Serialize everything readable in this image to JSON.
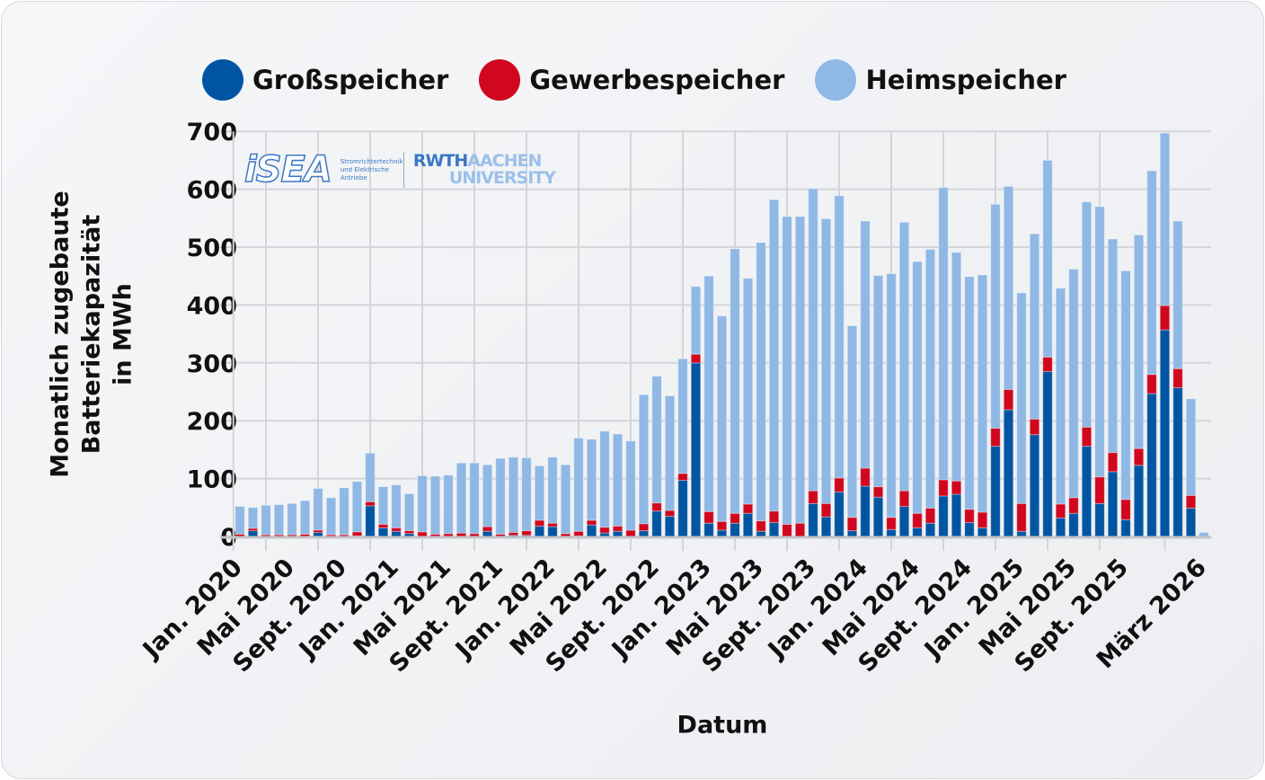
{
  "chart_data": {
    "type": "bar",
    "stacked": true,
    "xlabel": "Datum",
    "ylabel_lines": [
      "Monatlich zugebaute",
      "Batteriekapazität",
      "in MWh"
    ],
    "ylim": [
      0,
      700
    ],
    "yticks": [
      0,
      100,
      200,
      300,
      400,
      500,
      600,
      700
    ],
    "grid": true,
    "legend_position": "top",
    "x_first_month": "Jan. 2020",
    "x_last_month": "März 2026",
    "tick_labels": [
      {
        "index": 0,
        "label": "Jan. 2020"
      },
      {
        "index": 4,
        "label": "Mai 2020"
      },
      {
        "index": 8,
        "label": "Sept. 2020"
      },
      {
        "index": 12,
        "label": "Jan. 2021"
      },
      {
        "index": 16,
        "label": "Mai 2021"
      },
      {
        "index": 20,
        "label": "Sept. 2021"
      },
      {
        "index": 24,
        "label": "Jan. 2022"
      },
      {
        "index": 28,
        "label": "Mai 2022"
      },
      {
        "index": 32,
        "label": "Sept. 2022"
      },
      {
        "index": 36,
        "label": "Jan. 2023"
      },
      {
        "index": 40,
        "label": "Mai 2023"
      },
      {
        "index": 44,
        "label": "Sept. 2023"
      },
      {
        "index": 48,
        "label": "Jan. 2024"
      },
      {
        "index": 52,
        "label": "Mai 2024"
      },
      {
        "index": 56,
        "label": "Sept. 2024"
      },
      {
        "index": 60,
        "label": "Jan. 2025"
      },
      {
        "index": 64,
        "label": "Mai 2025"
      },
      {
        "index": 68,
        "label": "Sept. 2025"
      },
      {
        "index": 74,
        "label": "März 2026"
      }
    ],
    "series": [
      {
        "name": "Großspeicher",
        "color": "#0055a3",
        "values": [
          0,
          10,
          0,
          0,
          0,
          0,
          7,
          0,
          0,
          1,
          53,
          15,
          9,
          5,
          0,
          0,
          0,
          0,
          0,
          9,
          0,
          2,
          2,
          18,
          17,
          0,
          1,
          20,
          6,
          9,
          0,
          10,
          44,
          35,
          97,
          300,
          23,
          11,
          23,
          40,
          9,
          24,
          0,
          0,
          57,
          34,
          77,
          10,
          87,
          68,
          12,
          52,
          15,
          23,
          70,
          73,
          24,
          15,
          156,
          219,
          9,
          176,
          285,
          32,
          40,
          156,
          57,
          112,
          29,
          123,
          247,
          357,
          257,
          49,
          0
        ]
      },
      {
        "name": "Gewerbespeicher",
        "color": "#d0071e",
        "values": [
          4,
          4,
          3,
          3,
          3,
          4,
          4,
          3,
          3,
          7,
          7,
          6,
          6,
          5,
          8,
          4,
          5,
          6,
          5,
          8,
          4,
          5,
          8,
          10,
          6,
          5,
          8,
          8,
          10,
          9,
          11,
          12,
          14,
          10,
          12,
          15,
          20,
          15,
          17,
          16,
          18,
          20,
          21,
          23,
          22,
          23,
          24,
          23,
          31,
          18,
          21,
          27,
          25,
          26,
          28,
          23,
          23,
          27,
          31,
          35,
          48,
          27,
          25,
          24,
          27,
          33,
          46,
          33,
          35,
          29,
          33,
          42,
          33,
          22,
          0
        ]
      },
      {
        "name": "Heimspeicher",
        "color": "#8fb8e4",
        "values": [
          48,
          36,
          51,
          52,
          54,
          58,
          72,
          64,
          81,
          87,
          84,
          65,
          74,
          64,
          97,
          100,
          101,
          121,
          122,
          107,
          131,
          130,
          126,
          94,
          114,
          119,
          161,
          140,
          166,
          159,
          154,
          223,
          219,
          198,
          198,
          117,
          407,
          355,
          457,
          390,
          481,
          538,
          532,
          530,
          522,
          492,
          488,
          331,
          427,
          365,
          421,
          464,
          435,
          447,
          505,
          395,
          402,
          410,
          387,
          351,
          364,
          320,
          340,
          373,
          395,
          389,
          467,
          369,
          395,
          369,
          352,
          298,
          255,
          167,
          7
        ]
      }
    ]
  },
  "logo": {
    "isea": "iSEA",
    "isea_sub": "Stromrichtertechnik und Elektrische Antriebe",
    "rwth_a": "RWTH",
    "rwth_b": "AACHEN",
    "rwth_c": "UNIVERSITY"
  }
}
